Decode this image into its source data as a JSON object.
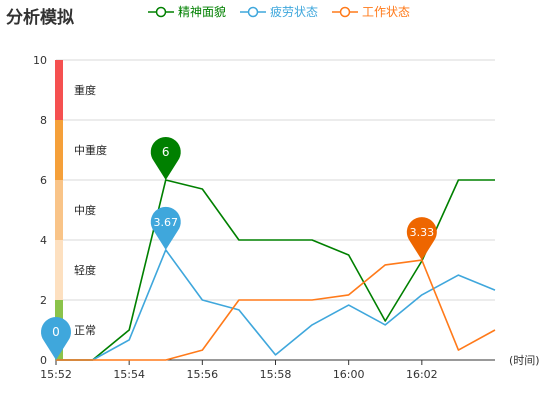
{
  "header": {
    "title": "分析模拟"
  },
  "chart_data": {
    "type": "line",
    "x": [
      "15:52",
      "15:53",
      "15:54",
      "15:55",
      "15:56",
      "15:57",
      "15:58",
      "15:59",
      "16:00",
      "16:01",
      "16:02",
      "16:03",
      "16:04"
    ],
    "x_tick_labels": [
      "15:52",
      "15:54",
      "15:56",
      "15:58",
      "16:00",
      "16:02"
    ],
    "x_axis_unit": "(时间)",
    "ylim": [
      0,
      10
    ],
    "y_ticks": [
      0,
      2,
      4,
      6,
      8,
      10
    ],
    "grid": true,
    "legend_position": "top",
    "series": [
      {
        "name": "精神面貌",
        "color": "#008000",
        "points": [
          [
            "15:52",
            0
          ],
          [
            "15:53",
            0
          ],
          [
            "15:54",
            1
          ],
          [
            "15:55",
            6
          ],
          [
            "15:56",
            5.7
          ],
          [
            "15:57",
            4
          ],
          [
            "15:58",
            4
          ],
          [
            "15:59",
            4
          ],
          [
            "16:00",
            3.5
          ],
          [
            "16:01",
            1.3
          ],
          [
            "16:02",
            3.3
          ],
          [
            "16:03",
            6
          ],
          [
            "16:04",
            6
          ]
        ]
      },
      {
        "name": "疲劳状态",
        "color": "#3fa7dc",
        "points": [
          [
            "15:52",
            0
          ],
          [
            "15:53",
            0
          ],
          [
            "15:54",
            0.67
          ],
          [
            "15:55",
            3.67
          ],
          [
            "15:56",
            2
          ],
          [
            "15:57",
            1.67
          ],
          [
            "15:58",
            0.17
          ],
          [
            "15:59",
            1.17
          ],
          [
            "16:00",
            1.83
          ],
          [
            "16:01",
            1.17
          ],
          [
            "16:02",
            2.17
          ],
          [
            "16:03",
            2.83
          ],
          [
            "16:04",
            2.33
          ]
        ]
      },
      {
        "name": "工作状态",
        "color": "#ff7a1a",
        "points": [
          [
            "15:52",
            0
          ],
          [
            "15:53",
            0
          ],
          [
            "15:54",
            0
          ],
          [
            "15:55",
            0
          ],
          [
            "15:56",
            0.33
          ],
          [
            "15:57",
            2
          ],
          [
            "15:58",
            2
          ],
          [
            "15:59",
            2
          ],
          [
            "16:00",
            2.17
          ],
          [
            "16:01",
            3.17
          ],
          [
            "16:02",
            3.33
          ],
          [
            "16:03",
            0.33
          ],
          [
            "16:04",
            1
          ]
        ]
      }
    ],
    "markers": [
      {
        "series": "精神面貌",
        "x": "15:55",
        "y": 6,
        "label": "6",
        "color": "#008000"
      },
      {
        "series": "疲劳状态",
        "x": "15:55",
        "y": 3.67,
        "label": "3.67",
        "color": "#3fa7dc"
      },
      {
        "series": "工作状态",
        "x": "16:02",
        "y": 3.33,
        "label": "3.33",
        "color": "#ee6600"
      },
      {
        "series": "疲劳状态",
        "x": "15:52",
        "y": 0,
        "label": "0",
        "color": "#3fa7dc"
      }
    ],
    "bands": [
      {
        "label": "正常",
        "from": 0,
        "to": 2,
        "color": "#8bc34a"
      },
      {
        "label": "轻度",
        "from": 2,
        "to": 4,
        "color": "#fde0c0"
      },
      {
        "label": "中度",
        "from": 4,
        "to": 6,
        "color": "#f9c488"
      },
      {
        "label": "中重度",
        "from": 6,
        "to": 8,
        "color": "#f5a03a"
      },
      {
        "label": "重度",
        "from": 8,
        "to": 10,
        "color": "#f55050"
      }
    ]
  }
}
